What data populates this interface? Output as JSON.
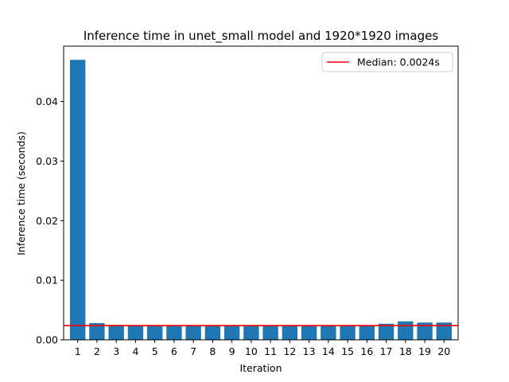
{
  "chart_data": {
    "type": "bar",
    "title": "Inference time in unet_small model and 1920*1920 images",
    "xlabel": "Iteration",
    "ylabel": "Inference time (seconds)",
    "categories": [
      "1",
      "2",
      "3",
      "4",
      "5",
      "6",
      "7",
      "8",
      "9",
      "10",
      "11",
      "12",
      "13",
      "14",
      "15",
      "16",
      "17",
      "18",
      "19",
      "20"
    ],
    "values": [
      0.047,
      0.0028,
      0.0025,
      0.0024,
      0.0024,
      0.0024,
      0.0024,
      0.0024,
      0.0024,
      0.0024,
      0.0024,
      0.0024,
      0.0024,
      0.0024,
      0.0024,
      0.0024,
      0.0027,
      0.0031,
      0.0029,
      0.0029
    ],
    "ylim": [
      0,
      0.0493
    ],
    "yticks": [
      0.0,
      0.01,
      0.02,
      0.03,
      0.04
    ],
    "ytick_labels": [
      "0.00",
      "0.01",
      "0.02",
      "0.03",
      "0.04"
    ],
    "bar_color": "#1f77b4",
    "median": {
      "value": 0.0024,
      "label": "Median: 0.0024s",
      "color": "#ff0000"
    },
    "legend_position": "top-right",
    "grid": false
  }
}
